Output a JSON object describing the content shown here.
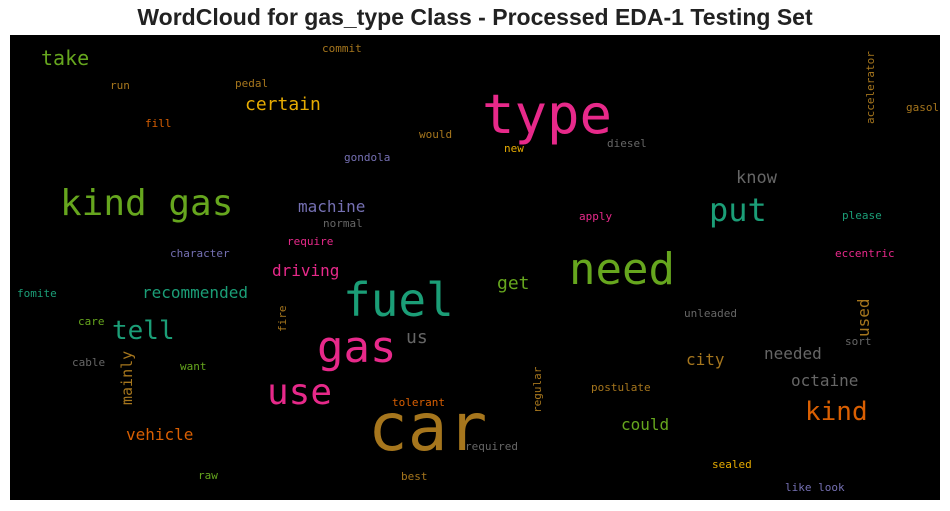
{
  "chart_data": {
    "type": "wordcloud",
    "title": "WordCloud for gas_type Class - Processed EDA-1 Testing Set",
    "background": "#000000",
    "words": [
      {
        "text": "car",
        "size": 66,
        "color": "#a6761d"
      },
      {
        "text": "type",
        "size": 54,
        "color": "#e7298a"
      },
      {
        "text": "fuel",
        "size": 46,
        "color": "#1b9e77"
      },
      {
        "text": "need",
        "size": 44,
        "color": "#66a61e"
      },
      {
        "text": "gas",
        "size": 44,
        "color": "#e7298a"
      },
      {
        "text": "kind gas",
        "size": 36,
        "color": "#66a61e"
      },
      {
        "text": "use",
        "size": 36,
        "color": "#e7298a"
      },
      {
        "text": "put",
        "size": 32,
        "color": "#1b9e77"
      },
      {
        "text": "tell",
        "size": 26,
        "color": "#1b9e77"
      },
      {
        "text": "kind",
        "size": 26,
        "color": "#d95f02"
      },
      {
        "text": "take",
        "size": 20,
        "color": "#66a61e"
      },
      {
        "text": "certain",
        "size": 18,
        "color": "#e6ab02"
      },
      {
        "text": "get",
        "size": 18,
        "color": "#66a61e"
      },
      {
        "text": "us",
        "size": 18,
        "color": "#666666"
      },
      {
        "text": "know",
        "size": 17,
        "color": "#666666"
      },
      {
        "text": "machine",
        "size": 16,
        "color": "#7570b3"
      },
      {
        "text": "driving",
        "size": 16,
        "color": "#e7298a"
      },
      {
        "text": "recommended",
        "size": 16,
        "color": "#1b9e77"
      },
      {
        "text": "needed",
        "size": 16,
        "color": "#666666"
      },
      {
        "text": "octaine",
        "size": 16,
        "color": "#666666"
      },
      {
        "text": "city",
        "size": 16,
        "color": "#a6761d"
      },
      {
        "text": "could",
        "size": 16,
        "color": "#66a61e"
      },
      {
        "text": "vehicle",
        "size": 16,
        "color": "#d95f02"
      },
      {
        "text": "used",
        "size": 16,
        "color": "#a6761d"
      },
      {
        "text": "mainly",
        "size": 15,
        "color": "#a6761d"
      },
      {
        "text": "run",
        "size": 11,
        "color": "#a6761d"
      },
      {
        "text": "pedal",
        "size": 11,
        "color": "#a6761d"
      },
      {
        "text": "commit",
        "size": 11,
        "color": "#a6761d"
      },
      {
        "text": "fill",
        "size": 11,
        "color": "#d95f02"
      },
      {
        "text": "would",
        "size": 11,
        "color": "#a6761d"
      },
      {
        "text": "new",
        "size": 11,
        "color": "#e6ab02"
      },
      {
        "text": "diesel",
        "size": 11,
        "color": "#666666"
      },
      {
        "text": "gondola",
        "size": 11,
        "color": "#7570b3"
      },
      {
        "text": "accelerator",
        "size": 11,
        "color": "#a6761d"
      },
      {
        "text": "gasoline",
        "size": 11,
        "color": "#a6761d"
      },
      {
        "text": "apply",
        "size": 11,
        "color": "#e7298a"
      },
      {
        "text": "please",
        "size": 11,
        "color": "#1b9e77"
      },
      {
        "text": "normal",
        "size": 11,
        "color": "#666666"
      },
      {
        "text": "require",
        "size": 11,
        "color": "#e7298a"
      },
      {
        "text": "character",
        "size": 11,
        "color": "#7570b3"
      },
      {
        "text": "eccentric",
        "size": 11,
        "color": "#e7298a"
      },
      {
        "text": "fomite",
        "size": 11,
        "color": "#1b9e77"
      },
      {
        "text": "care",
        "size": 11,
        "color": "#66a61e"
      },
      {
        "text": "fire",
        "size": 11,
        "color": "#a6761d"
      },
      {
        "text": "unleaded",
        "size": 11,
        "color": "#666666"
      },
      {
        "text": "sort",
        "size": 11,
        "color": "#666666"
      },
      {
        "text": "cable",
        "size": 11,
        "color": "#666666"
      },
      {
        "text": "want",
        "size": 11,
        "color": "#66a61e"
      },
      {
        "text": "regular",
        "size": 11,
        "color": "#a6761d"
      },
      {
        "text": "postulate",
        "size": 11,
        "color": "#a6761d"
      },
      {
        "text": "tolerant",
        "size": 11,
        "color": "#d95f02"
      },
      {
        "text": "required",
        "size": 11,
        "color": "#666666"
      },
      {
        "text": "sealed",
        "size": 11,
        "color": "#e6ab02"
      },
      {
        "text": "raw",
        "size": 11,
        "color": "#66a61e"
      },
      {
        "text": "best",
        "size": 11,
        "color": "#a6761d"
      },
      {
        "text": "like look",
        "size": 11,
        "color": "#7570b3"
      }
    ]
  }
}
